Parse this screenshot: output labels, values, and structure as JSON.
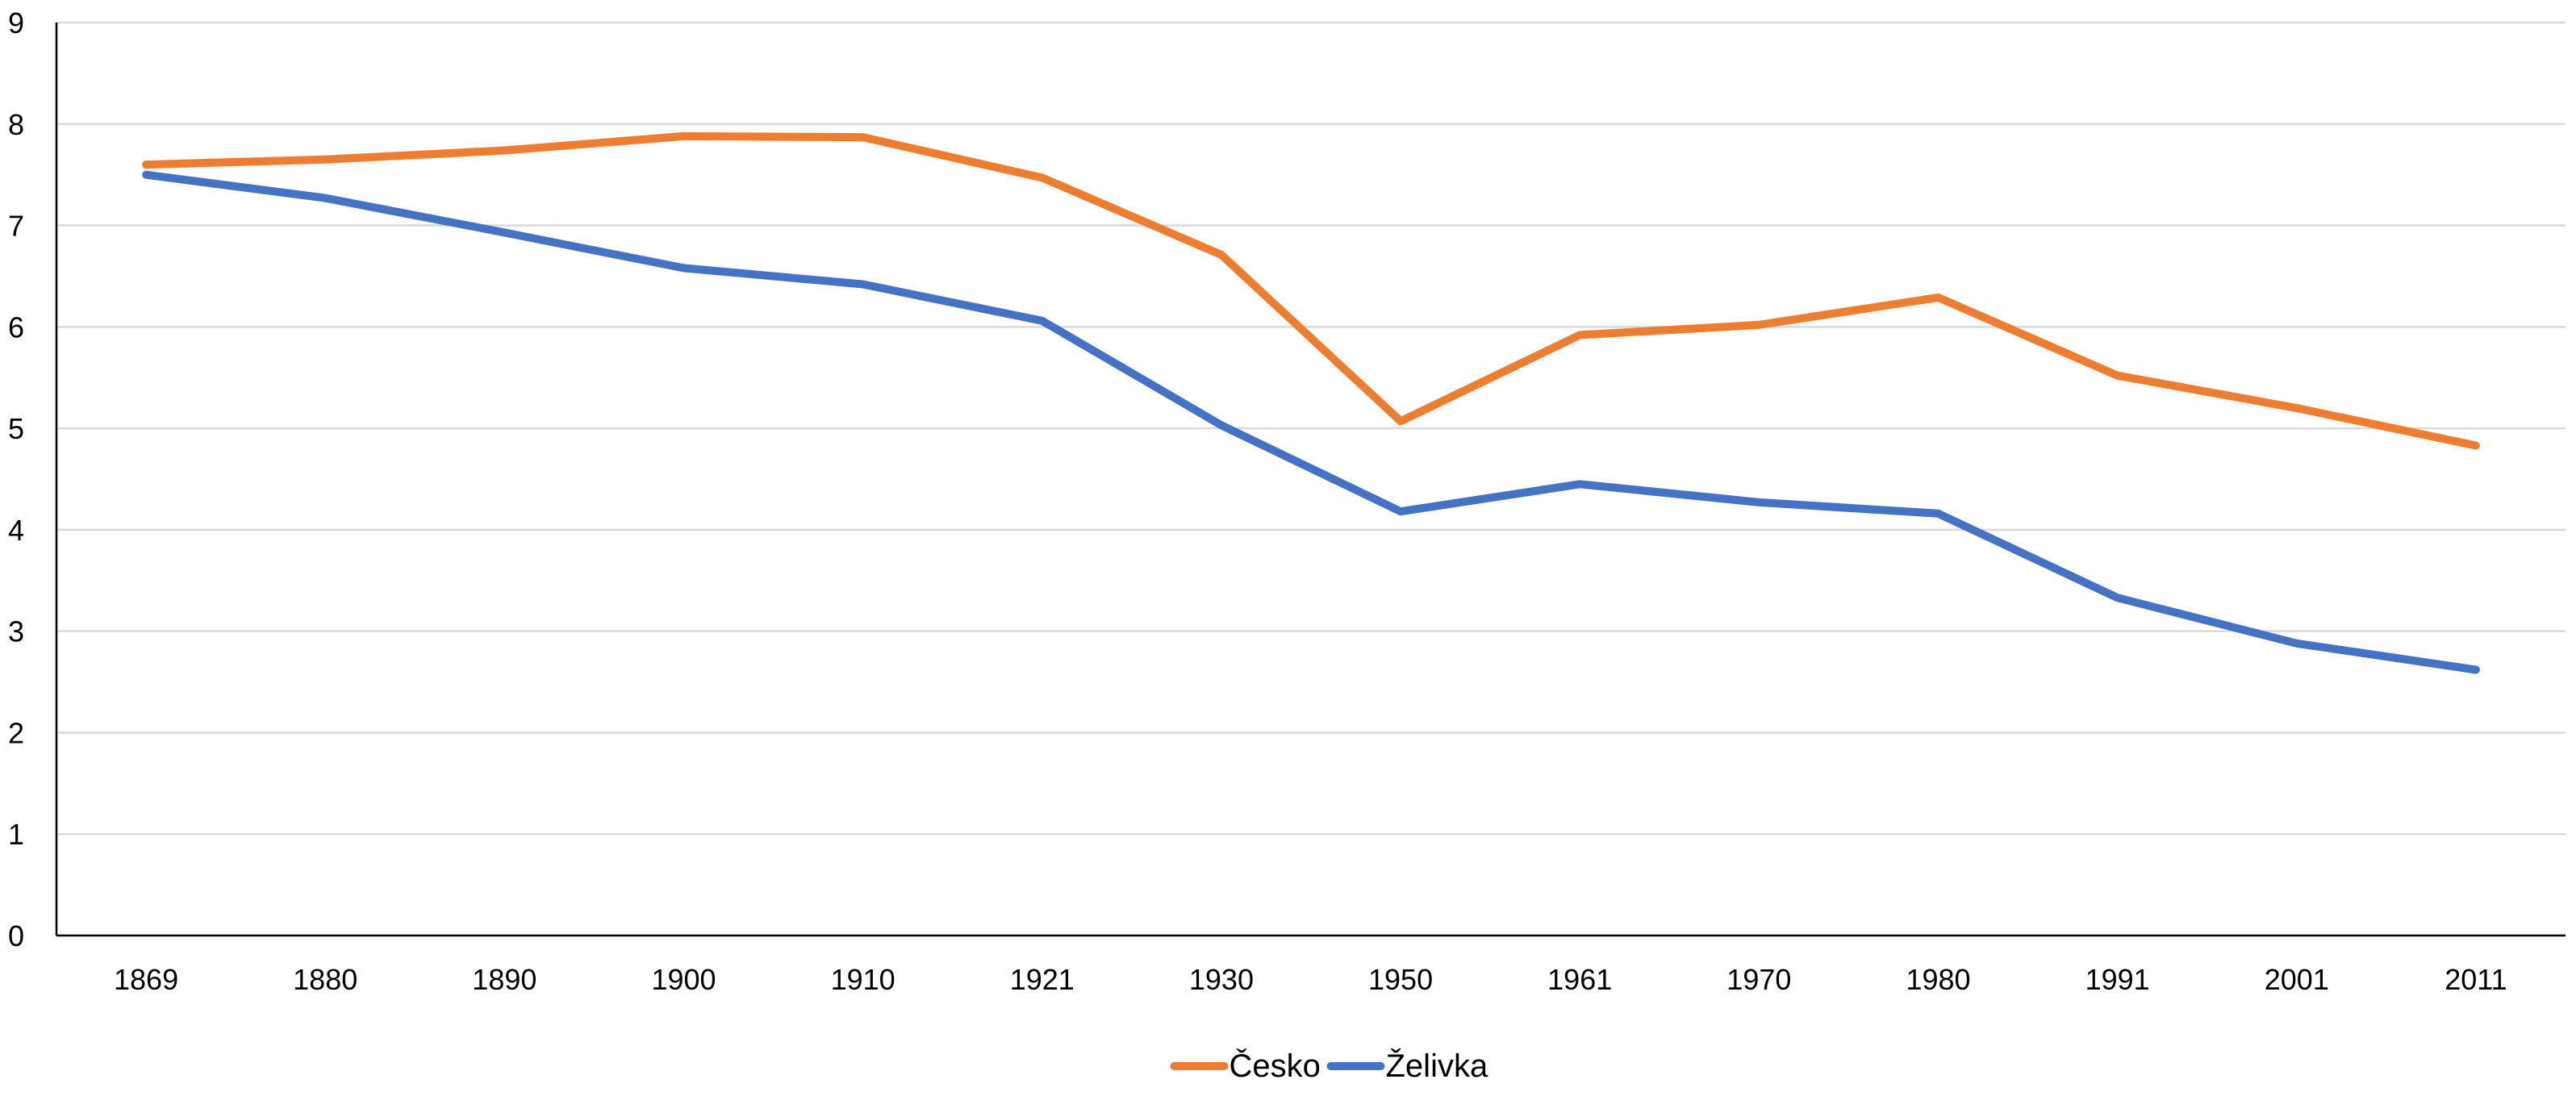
{
  "chart_data": {
    "type": "line",
    "title": "",
    "xlabel": "",
    "ylabel": "",
    "categories": [
      "1869",
      "1880",
      "1890",
      "1900",
      "1910",
      "1921",
      "1930",
      "1950",
      "1961",
      "1970",
      "1980",
      "1991",
      "2001",
      "2011"
    ],
    "ylim": [
      0,
      9
    ],
    "yticks": [
      "0",
      "1",
      "2",
      "3",
      "4",
      "5",
      "6",
      "7",
      "8",
      "9"
    ],
    "grid": true,
    "legend_position": "bottom",
    "series": [
      {
        "name": "Česko",
        "color": "#ED7D31",
        "values": [
          7.6,
          7.65,
          7.74,
          7.88,
          7.87,
          7.47,
          6.71,
          5.07,
          5.92,
          6.02,
          6.29,
          5.52,
          5.2,
          4.83
        ]
      },
      {
        "name": "Želivka",
        "color": "#4472C4",
        "values": [
          7.5,
          7.27,
          6.93,
          6.58,
          6.42,
          6.06,
          5.03,
          4.18,
          4.45,
          4.27,
          4.16,
          3.33,
          2.88,
          2.62
        ]
      }
    ]
  }
}
